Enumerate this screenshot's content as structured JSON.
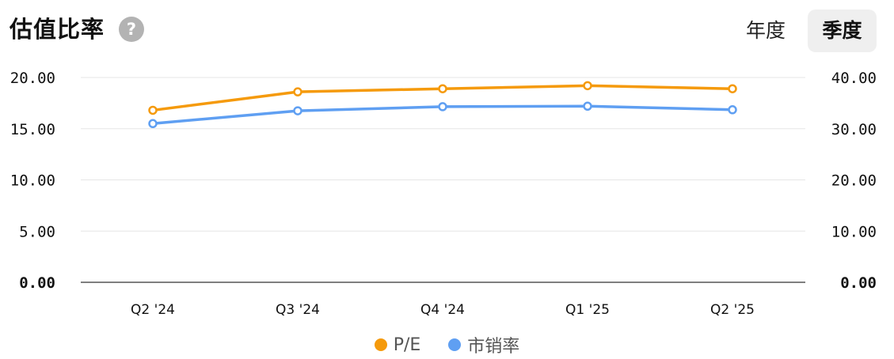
{
  "header": {
    "title": "估值比率",
    "help_icon": "?"
  },
  "tabs": [
    {
      "label": "年度"
    },
    {
      "label": "季度",
      "active": true
    }
  ],
  "chart_data": {
    "type": "line",
    "categories": [
      "Q2 '24",
      "Q3 '24",
      "Q4 '24",
      "Q1 '25",
      "Q2 '25"
    ],
    "y_left": {
      "ticks": [
        "0.00",
        "5.00",
        "10.00",
        "15.00",
        "20.00"
      ],
      "ylim": [
        0,
        20
      ]
    },
    "y_right": {
      "ticks": [
        "0.00",
        "10.00",
        "20.00",
        "30.00",
        "40.00"
      ],
      "ylim": [
        0,
        40
      ]
    },
    "series": [
      {
        "name": "P/E",
        "axis": "left",
        "color": "#f59a0c",
        "values": [
          16.8,
          18.6,
          18.9,
          19.2,
          18.9
        ]
      },
      {
        "name": "市销率",
        "axis": "right",
        "color": "#5f9ff2",
        "values": [
          31.0,
          33.5,
          34.3,
          34.4,
          33.7
        ]
      }
    ],
    "grid": true,
    "legend_position": "bottom-center"
  }
}
